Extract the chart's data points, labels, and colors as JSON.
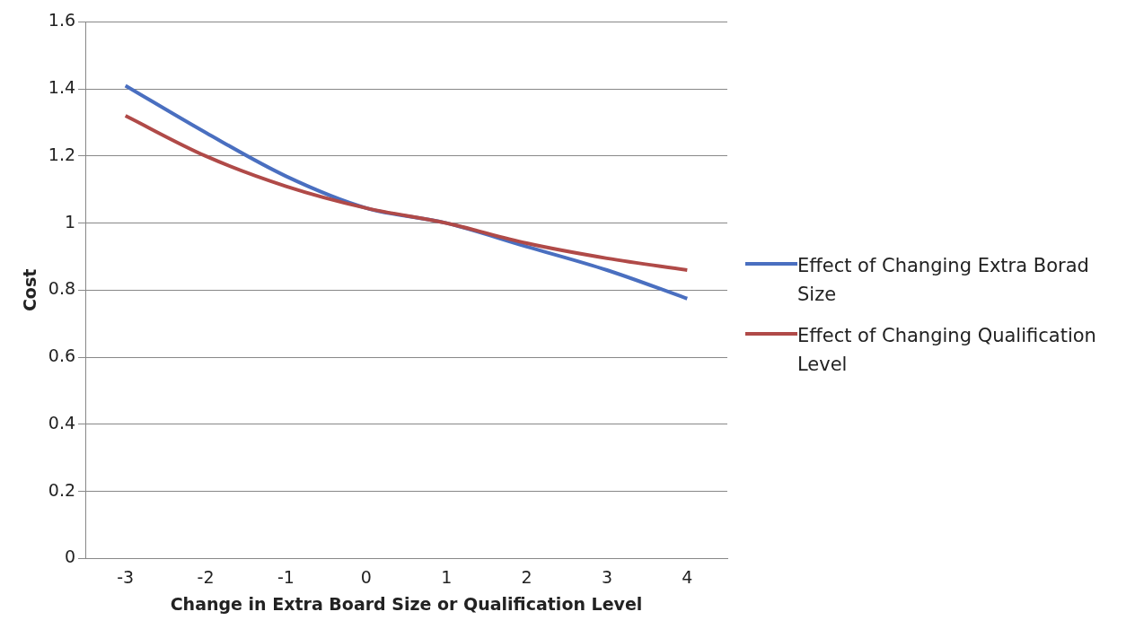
{
  "chart_data": {
    "type": "line",
    "xlabel": "Change in Extra Board Size or Qualification Level",
    "ylabel": "Cost",
    "categories": [
      "-3",
      "-2",
      "-1",
      "0",
      "1",
      "2",
      "3",
      "4"
    ],
    "series": [
      {
        "name": "Effect of Changing Extra Borad Size",
        "color": "#4a6fc0",
        "values": [
          1.41,
          1.27,
          1.14,
          1.045,
          1.0,
          0.93,
          0.86,
          0.775
        ]
      },
      {
        "name": "Effect of Changing Qualification Level",
        "color": "#b04a48",
        "values": [
          1.32,
          1.2,
          1.11,
          1.045,
          1.0,
          0.94,
          0.895,
          0.86
        ]
      }
    ],
    "ylim": [
      0,
      1.6
    ],
    "yticks": [
      0,
      0.2,
      0.4,
      0.6,
      0.8,
      1,
      1.2,
      1.4,
      1.6
    ],
    "grid": "y",
    "legend": "right",
    "marker": "none"
  }
}
